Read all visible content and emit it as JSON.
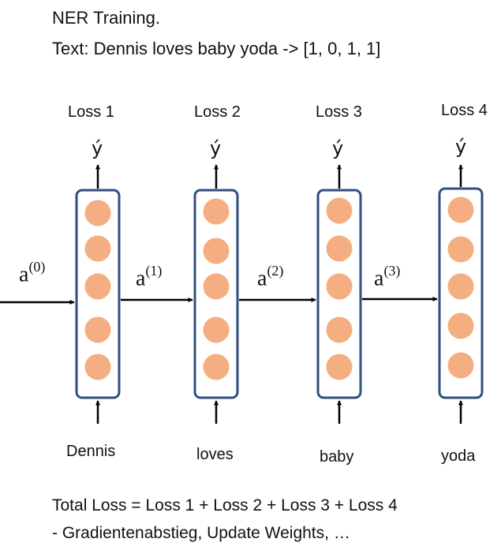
{
  "header": {
    "title": "NER Training.",
    "example": "Text: Dennis loves baby yoda -> [1, 0, 1, 1]"
  },
  "cells": [
    {
      "loss": "Loss 1",
      "output": "ý",
      "word": "Dennis"
    },
    {
      "loss": "Loss 2",
      "output": "ý",
      "word": "loves"
    },
    {
      "loss": "Loss 3",
      "output": "ý",
      "word": "baby"
    },
    {
      "loss": "Loss 4",
      "output": "ý",
      "word": "yoda"
    }
  ],
  "activations": [
    {
      "base": "a",
      "sup": "(0)"
    },
    {
      "base": "a",
      "sup": "(1)"
    },
    {
      "base": "a",
      "sup": "(2)"
    },
    {
      "base": "a",
      "sup": "(3)"
    }
  ],
  "footer": {
    "total_loss": "Total Loss = Loss 1 + Loss 2 + Loss 3 + Loss 4",
    "steps": "- Gradientenabstieg, Update Weights, …"
  },
  "colors": {
    "neuron_fill": "#F4AE82",
    "cell_border": "#2F4F7F",
    "arrow": "#000000"
  }
}
